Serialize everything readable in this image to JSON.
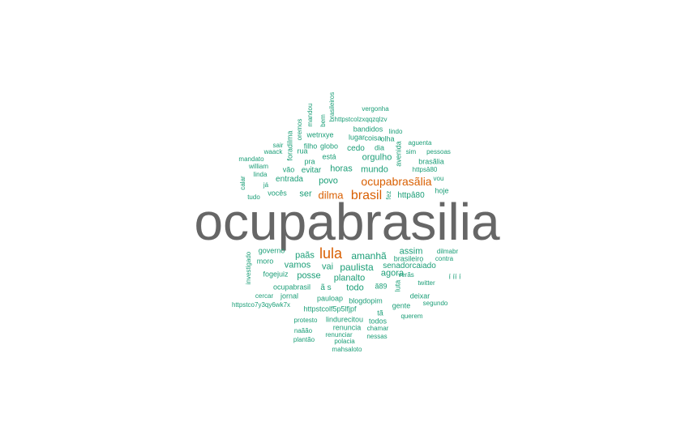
{
  "colors": {
    "tier_small": "#1b9e77",
    "tier_medium": "#d95f02",
    "tier_large": "#666666"
  },
  "words": [
    "ocupabrasilia",
    "lula",
    "brasil",
    "ocupabrasãlia",
    "dilma",
    "amanhã",
    "paulista",
    "orgulho",
    "mundo",
    "horas",
    "agora",
    "assim",
    "planalto",
    "vamos",
    "posse",
    "todo",
    "vai",
    "ser",
    "povo",
    "evitar",
    "paãs",
    "entrada",
    "senadorcaiado",
    "brasileiro",
    "httpâ80",
    "hoje",
    "cedo",
    "dia",
    "está",
    "globo",
    "filho",
    "lugar",
    "coisa",
    "olha",
    "bandidos",
    "wetnxye",
    "httpstcolzxqqzqlzv",
    "vergonha",
    "lindo",
    "aguenta",
    "sim",
    "pessoas",
    "brasãlia",
    "httpsâ80",
    "vou",
    "sair",
    "waack",
    "rua",
    "pra",
    "vão",
    "mandato",
    "william",
    "linda",
    "já",
    "vocês",
    "tudo",
    "governo",
    "moro",
    "fogejuiz",
    "ocupabrasil",
    "cercar",
    "jornal",
    "httpstco7y3qy6wk7x",
    "ã s",
    "ã89",
    "pauloap",
    "blogdopim",
    "httpstcolf5p5lfjpf",
    "gente",
    "deixar",
    "segundo",
    "twitter",
    "verãs",
    "contra",
    "dilmabr",
    "tã",
    "todos",
    "querem",
    "protesto",
    "lindurecitou",
    "renuncia",
    "chamar",
    "naãão",
    "renunciar",
    "nessas",
    "plantão",
    "polacia",
    "mahsaloto",
    "í íí í",
    "foradilma",
    "oremos",
    "mandou",
    "bem",
    "brasileiros",
    "avenida",
    "fez",
    "calar",
    "investigado",
    "luta"
  ]
}
